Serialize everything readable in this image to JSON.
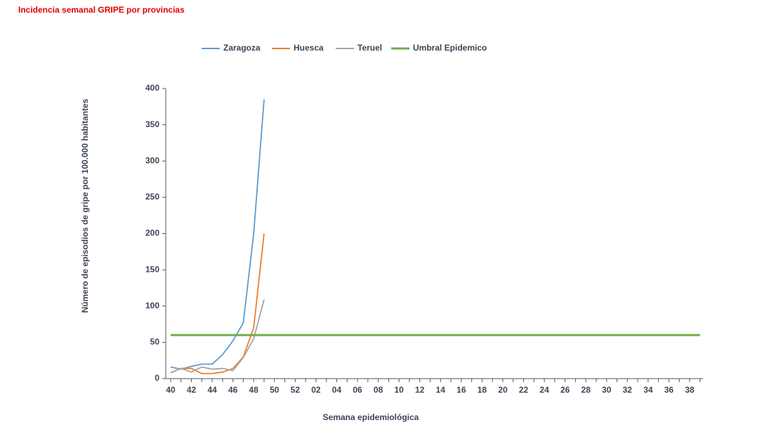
{
  "chart_data": {
    "type": "line",
    "title": "Incidencia semanal GRIPE por provincias",
    "x_label": "Semana epidemiológica",
    "y_label": "Número de episodios de gripe por 100.000 habitantes",
    "categories": [
      "40",
      null,
      "42",
      null,
      "44",
      null,
      "46",
      null,
      "48",
      null,
      "50",
      null,
      "52",
      null,
      "02",
      null,
      "04",
      null,
      "06",
      null,
      "08",
      null,
      "10",
      null,
      "12",
      null,
      "14",
      null,
      "16",
      null,
      "18",
      null,
      "20",
      null,
      "22",
      null,
      "24",
      null,
      "26",
      null,
      "28",
      null,
      "30",
      null,
      "32",
      null,
      "34",
      null,
      "36",
      null,
      "38",
      null
    ],
    "ylim": [
      0,
      400
    ],
    "yticks": [
      0,
      50,
      100,
      150,
      200,
      250,
      300,
      350,
      400
    ],
    "legend": "top",
    "series": [
      {
        "name": "Zaragoza",
        "color": "#5b9bd5",
        "values": [
          16,
          13,
          17,
          20,
          20,
          33,
          52,
          77,
          200,
          385,
          null,
          null,
          null,
          null,
          null,
          null,
          null,
          null,
          null,
          null,
          null,
          null,
          null,
          null,
          null,
          null,
          null,
          null,
          null,
          null,
          null,
          null,
          null,
          null,
          null,
          null,
          null,
          null,
          null,
          null,
          null,
          null,
          null,
          null,
          null,
          null,
          null,
          null,
          null,
          null,
          null,
          null
        ]
      },
      {
        "name": "Huesca",
        "color": "#ed7d31",
        "values": [
          8,
          14,
          14,
          7,
          7,
          9,
          14,
          30,
          70,
          200,
          null,
          null,
          null,
          null,
          null,
          null,
          null,
          null,
          null,
          null,
          null,
          null,
          null,
          null,
          null,
          null,
          null,
          null,
          null,
          null,
          null,
          null,
          null,
          null,
          null,
          null,
          null,
          null,
          null,
          null,
          null,
          null,
          null,
          null,
          null,
          null,
          null,
          null,
          null,
          null,
          null,
          null
        ]
      },
      {
        "name": "Teruel",
        "color": "#a5a5a5",
        "values": [
          8,
          14,
          9,
          16,
          13,
          14,
          11,
          29,
          55,
          109,
          null,
          null,
          null,
          null,
          null,
          null,
          null,
          null,
          null,
          null,
          null,
          null,
          null,
          null,
          null,
          null,
          null,
          null,
          null,
          null,
          null,
          null,
          null,
          null,
          null,
          null,
          null,
          null,
          null,
          null,
          null,
          null,
          null,
          null,
          null,
          null,
          null,
          null,
          null,
          null,
          null,
          null
        ]
      },
      {
        "name": "Umbral Epidemico",
        "color": "#70ad47",
        "width": 3,
        "values": [
          60,
          60,
          60,
          60,
          60,
          60,
          60,
          60,
          60,
          60,
          60,
          60,
          60,
          60,
          60,
          60,
          60,
          60,
          60,
          60,
          60,
          60,
          60,
          60,
          60,
          60,
          60,
          60,
          60,
          60,
          60,
          60,
          60,
          60,
          60,
          60,
          60,
          60,
          60,
          60,
          60,
          60,
          60,
          60,
          60,
          60,
          60,
          60,
          60,
          60,
          60,
          60
        ]
      }
    ]
  }
}
